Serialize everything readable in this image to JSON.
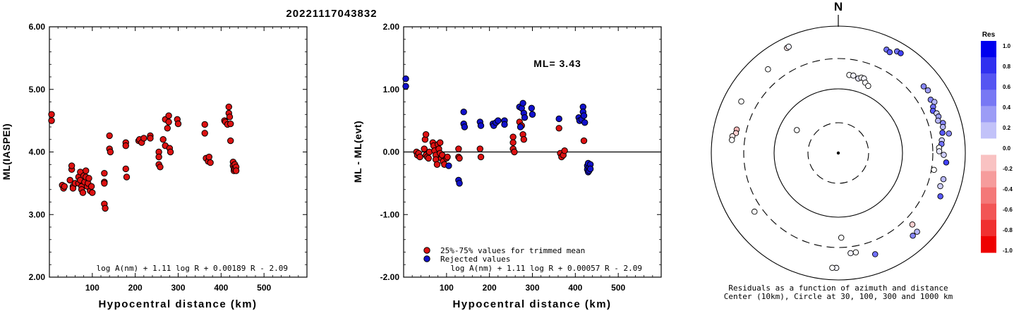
{
  "title": "20221117043832",
  "chart_data": [
    {
      "type": "scatter",
      "name_key": "left",
      "xlabel": "Hypocentral distance (km)",
      "ylabel": "ML(IASPEI)",
      "xlim": [
        0,
        600
      ],
      "ylim": [
        2.0,
        6.0
      ],
      "xticks": [
        "100",
        "200",
        "300",
        "400",
        "500"
      ],
      "yticks": [
        "2.00",
        "3.00",
        "4.00",
        "5.00",
        "6.00"
      ],
      "formula": "log A(nm) + 1.11 log R + 0.00189 R - 2.09",
      "series": [
        {
          "color": "#dd1111",
          "points": [
            [
              5,
              4.6
            ],
            [
              5,
              4.5
            ],
            [
              30,
              3.47
            ],
            [
              33,
              3.42
            ],
            [
              35,
              3.45
            ],
            [
              48,
              3.55
            ],
            [
              52,
              3.72
            ],
            [
              52,
              3.78
            ],
            [
              55,
              3.45
            ],
            [
              55,
              3.42
            ],
            [
              60,
              3.5
            ],
            [
              68,
              3.6
            ],
            [
              68,
              3.5
            ],
            [
              72,
              3.68
            ],
            [
              72,
              3.55
            ],
            [
              75,
              3.45
            ],
            [
              75,
              3.4
            ],
            [
              78,
              3.35
            ],
            [
              80,
              3.62
            ],
            [
              82,
              3.52
            ],
            [
              85,
              3.6
            ],
            [
              85,
              3.7
            ],
            [
              88,
              3.45
            ],
            [
              90,
              3.5
            ],
            [
              92,
              3.58
            ],
            [
              95,
              3.38
            ],
            [
              98,
              3.45
            ],
            [
              100,
              3.35
            ],
            [
              128,
              3.66
            ],
            [
              128,
              3.52
            ],
            [
              128,
              3.5
            ],
            [
              128,
              3.17
            ],
            [
              130,
              3.1
            ],
            [
              140,
              4.26
            ],
            [
              140,
              4.05
            ],
            [
              142,
              4.0
            ],
            [
              178,
              4.15
            ],
            [
              178,
              4.1
            ],
            [
              178,
              3.73
            ],
            [
              180,
              3.6
            ],
            [
              208,
              4.18
            ],
            [
              210,
              4.2
            ],
            [
              215,
              4.15
            ],
            [
              220,
              4.22
            ],
            [
              235,
              4.26
            ],
            [
              235,
              4.22
            ],
            [
              255,
              4.0
            ],
            [
              255,
              3.92
            ],
            [
              255,
              3.8
            ],
            [
              258,
              3.76
            ],
            [
              265,
              4.2
            ],
            [
              270,
              4.52
            ],
            [
              270,
              4.1
            ],
            [
              275,
              4.38
            ],
            [
              278,
              4.58
            ],
            [
              278,
              4.48
            ],
            [
              280,
              4.06
            ],
            [
              282,
              4.0
            ],
            [
              298,
              4.52
            ],
            [
              300,
              4.45
            ],
            [
              362,
              4.44
            ],
            [
              362,
              4.3
            ],
            [
              365,
              3.9
            ],
            [
              370,
              3.85
            ],
            [
              372,
              3.92
            ],
            [
              375,
              3.83
            ],
            [
              408,
              4.5
            ],
            [
              410,
              4.48
            ],
            [
              415,
              4.44
            ],
            [
              418,
              4.72
            ],
            [
              418,
              4.62
            ],
            [
              420,
              4.56
            ],
            [
              422,
              4.45
            ],
            [
              422,
              4.18
            ],
            [
              428,
              3.84
            ],
            [
              428,
              3.78
            ],
            [
              430,
              3.74
            ],
            [
              430,
              3.7
            ],
            [
              432,
              3.8
            ],
            [
              432,
              3.72
            ],
            [
              435,
              3.76
            ],
            [
              435,
              3.7
            ]
          ]
        }
      ]
    },
    {
      "type": "scatter",
      "name_key": "middle",
      "xlabel": "Hypocentral distance (km)",
      "ylabel": "ML - ML(evt)",
      "xlim": [
        0,
        600
      ],
      "ylim": [
        -2.0,
        2.0
      ],
      "xticks": [
        "100",
        "200",
        "300",
        "400",
        "500"
      ],
      "yticks": [
        "-2.00",
        "-1.00",
        "0.00",
        "1.00",
        "2.00"
      ],
      "reference_line": 0.0,
      "annotation": "ML= 3.43",
      "formula": "log A(nm) + 1.11 log R + 0.00057 R - 2.09",
      "legend": [
        {
          "label": "25%-75% values for trimmed mean",
          "color": "#dd1111"
        },
        {
          "label": "Rejected values",
          "color": "#1111cc"
        }
      ],
      "series": [
        {
          "name": "25%-75% values for trimmed mean",
          "color": "#dd1111",
          "points": [
            [
              30,
              0.0
            ],
            [
              32,
              -0.05
            ],
            [
              35,
              -0.02
            ],
            [
              38,
              -0.08
            ],
            [
              48,
              0.05
            ],
            [
              50,
              0.2
            ],
            [
              52,
              0.28
            ],
            [
              52,
              -0.05
            ],
            [
              55,
              -0.08
            ],
            [
              58,
              -0.1
            ],
            [
              60,
              0.0
            ],
            [
              68,
              0.15
            ],
            [
              70,
              0.1
            ],
            [
              72,
              0.02
            ],
            [
              75,
              -0.05
            ],
            [
              75,
              -0.12
            ],
            [
              78,
              -0.2
            ],
            [
              80,
              0.12
            ],
            [
              82,
              0.05
            ],
            [
              85,
              0.15
            ],
            [
              85,
              -0.02
            ],
            [
              88,
              -0.1
            ],
            [
              90,
              -0.05
            ],
            [
              92,
              -0.15
            ],
            [
              95,
              -0.2
            ],
            [
              100,
              -0.1
            ],
            [
              102,
              -0.08
            ],
            [
              128,
              0.05
            ],
            [
              128,
              -0.08
            ],
            [
              130,
              -0.1
            ],
            [
              178,
              0.05
            ],
            [
              180,
              -0.08
            ],
            [
              255,
              0.24
            ],
            [
              255,
              0.15
            ],
            [
              255,
              0.05
            ],
            [
              258,
              0.0
            ],
            [
              270,
              0.48
            ],
            [
              275,
              0.42
            ],
            [
              278,
              0.28
            ],
            [
              280,
              0.2
            ],
            [
              362,
              0.38
            ],
            [
              365,
              -0.02
            ],
            [
              368,
              -0.08
            ],
            [
              372,
              -0.05
            ],
            [
              375,
              0.02
            ],
            [
              420,
              0.18
            ]
          ]
        },
        {
          "name": "Rejected values",
          "color": "#1111cc",
          "points": [
            [
              5,
              1.17
            ],
            [
              5,
              1.05
            ],
            [
              105,
              -0.22
            ],
            [
              128,
              -0.45
            ],
            [
              130,
              -0.5
            ],
            [
              140,
              0.64
            ],
            [
              140,
              0.45
            ],
            [
              142,
              0.4
            ],
            [
              178,
              0.48
            ],
            [
              180,
              0.42
            ],
            [
              208,
              0.45
            ],
            [
              210,
              0.42
            ],
            [
              215,
              0.47
            ],
            [
              220,
              0.5
            ],
            [
              235,
              0.5
            ],
            [
              235,
              0.44
            ],
            [
              270,
              0.72
            ],
            [
              272,
              0.4
            ],
            [
              275,
              0.7
            ],
            [
              278,
              0.78
            ],
            [
              280,
              0.62
            ],
            [
              282,
              0.55
            ],
            [
              298,
              0.7
            ],
            [
              300,
              0.6
            ],
            [
              362,
              0.53
            ],
            [
              408,
              0.55
            ],
            [
              410,
              0.5
            ],
            [
              415,
              0.52
            ],
            [
              418,
              0.72
            ],
            [
              418,
              0.64
            ],
            [
              420,
              0.58
            ],
            [
              422,
              0.47
            ],
            [
              428,
              -0.22
            ],
            [
              428,
              -0.28
            ],
            [
              430,
              -0.18
            ],
            [
              430,
              -0.32
            ],
            [
              432,
              -0.25
            ],
            [
              432,
              -0.3
            ],
            [
              435,
              -0.2
            ],
            [
              435,
              -0.27
            ]
          ]
        }
      ]
    },
    {
      "type": "scatter",
      "name_key": "polar",
      "north_label": "N",
      "caption_line1": "Residuals as a function of azimuth and distance",
      "caption_line2": "Center (10km), Circle at 30, 100, 300 and 1000 km",
      "colorbar_title": "Res",
      "colorbar_ticks": [
        "1.0",
        "0.8",
        "0.6",
        "0.4",
        "0.2",
        "0.0",
        "-0.2",
        "-0.4",
        "-0.6",
        "-0.8",
        "-1.0"
      ],
      "colorbar_colors": [
        "#0000ee",
        "#3030f0",
        "#5555f2",
        "#7878f4",
        "#9c9cf6",
        "#c2c2f9",
        "#ffffff",
        "#f9c2c2",
        "#f69c9c",
        "#f47878",
        "#f25555",
        "#f03030",
        "#ee0000"
      ],
      "stations": [
        {
          "az": -26,
          "dist_km": 690,
          "res": -0.1
        },
        {
          "az": -25,
          "dist_km": 700,
          "res": 0.05
        },
        {
          "az": -40,
          "dist_km": 520,
          "res": 0.0
        },
        {
          "az": -62,
          "dist_km": 530,
          "res": 0.0
        },
        {
          "az": -77,
          "dist_km": 430,
          "res": -0.3
        },
        {
          "az": -79,
          "dist_km": 430,
          "res": -0.2
        },
        {
          "az": -81,
          "dist_km": 480,
          "res": -0.1
        },
        {
          "az": -83,
          "dist_km": 480,
          "res": 0.0
        },
        {
          "az": -61,
          "dist_km": 55,
          "res": 0.0
        },
        {
          "az": 8,
          "dist_km": 170,
          "res": 0.0
        },
        {
          "az": 11,
          "dist_km": 170,
          "res": 0.05
        },
        {
          "az": 15,
          "dist_km": 160,
          "res": 0.1
        },
        {
          "az": 17,
          "dist_km": 170,
          "res": 0.0
        },
        {
          "az": 19,
          "dist_km": 170,
          "res": 0.05
        },
        {
          "az": 21,
          "dist_km": 150,
          "res": 0.0
        },
        {
          "az": 24,
          "dist_km": 140,
          "res": 0.0
        },
        {
          "az": 25,
          "dist_km": 620,
          "res": 0.6
        },
        {
          "az": 27,
          "dist_km": 600,
          "res": 0.7
        },
        {
          "az": 30,
          "dist_km": 700,
          "res": 0.6
        },
        {
          "az": 32,
          "dist_km": 710,
          "res": 0.8
        },
        {
          "az": 52,
          "dist_km": 500,
          "res": 0.5
        },
        {
          "az": 55,
          "dist_km": 520,
          "res": 0.4
        },
        {
          "az": 60,
          "dist_km": 470,
          "res": 0.5
        },
        {
          "az": 62,
          "dist_km": 510,
          "res": 0.3
        },
        {
          "az": 64,
          "dist_km": 450,
          "res": 0.6
        },
        {
          "az": 66,
          "dist_km": 420,
          "res": 0.7
        },
        {
          "az": 68,
          "dist_km": 460,
          "res": 0.2
        },
        {
          "az": 70,
          "dist_km": 470,
          "res": 0.4
        },
        {
          "az": 72,
          "dist_km": 440,
          "res": 0.3
        },
        {
          "az": 74,
          "dist_km": 510,
          "res": 0.5
        },
        {
          "az": 76,
          "dist_km": 490,
          "res": 0.3
        },
        {
          "az": 79,
          "dist_km": 460,
          "res": 0.7
        },
        {
          "az": 80,
          "dist_km": 580,
          "res": 0.5
        },
        {
          "az": 83,
          "dist_km": 430,
          "res": 0.2
        },
        {
          "az": 85,
          "dist_km": 420,
          "res": 0.6
        },
        {
          "az": 87,
          "dist_km": 380,
          "res": 0.0
        },
        {
          "az": 89,
          "dist_km": 380,
          "res": 0.1
        },
        {
          "az": 91,
          "dist_km": 450,
          "res": 0.2
        },
        {
          "az": 95,
          "dist_km": 500,
          "res": 0.8
        },
        {
          "az": 100,
          "dist_km": 330,
          "res": 0.0
        },
        {
          "az": 104,
          "dist_km": 500,
          "res": 0.3
        },
        {
          "az": 108,
          "dist_km": 480,
          "res": 0.2
        },
        {
          "az": 113,
          "dist_km": 550,
          "res": 0.7
        },
        {
          "az": 134,
          "dist_km": 410,
          "res": -0.2
        },
        {
          "az": 135,
          "dist_km": 560,
          "res": 0.3
        },
        {
          "az": 138,
          "dist_km": 560,
          "res": 0.5
        },
        {
          "az": 160,
          "dist_km": 490,
          "res": 0.6
        },
        {
          "az": 170,
          "dist_km": 380,
          "res": 0.0
        },
        {
          "az": 173,
          "dist_km": 380,
          "res": 0.05
        },
        {
          "az": 178,
          "dist_km": 210,
          "res": 0.0
        },
        {
          "az": 181,
          "dist_km": 640,
          "res": 0.05
        },
        {
          "az": 183,
          "dist_km": 640,
          "res": 0.0
        },
        {
          "az": 235,
          "dist_km": 400,
          "res": 0.0
        }
      ]
    }
  ]
}
